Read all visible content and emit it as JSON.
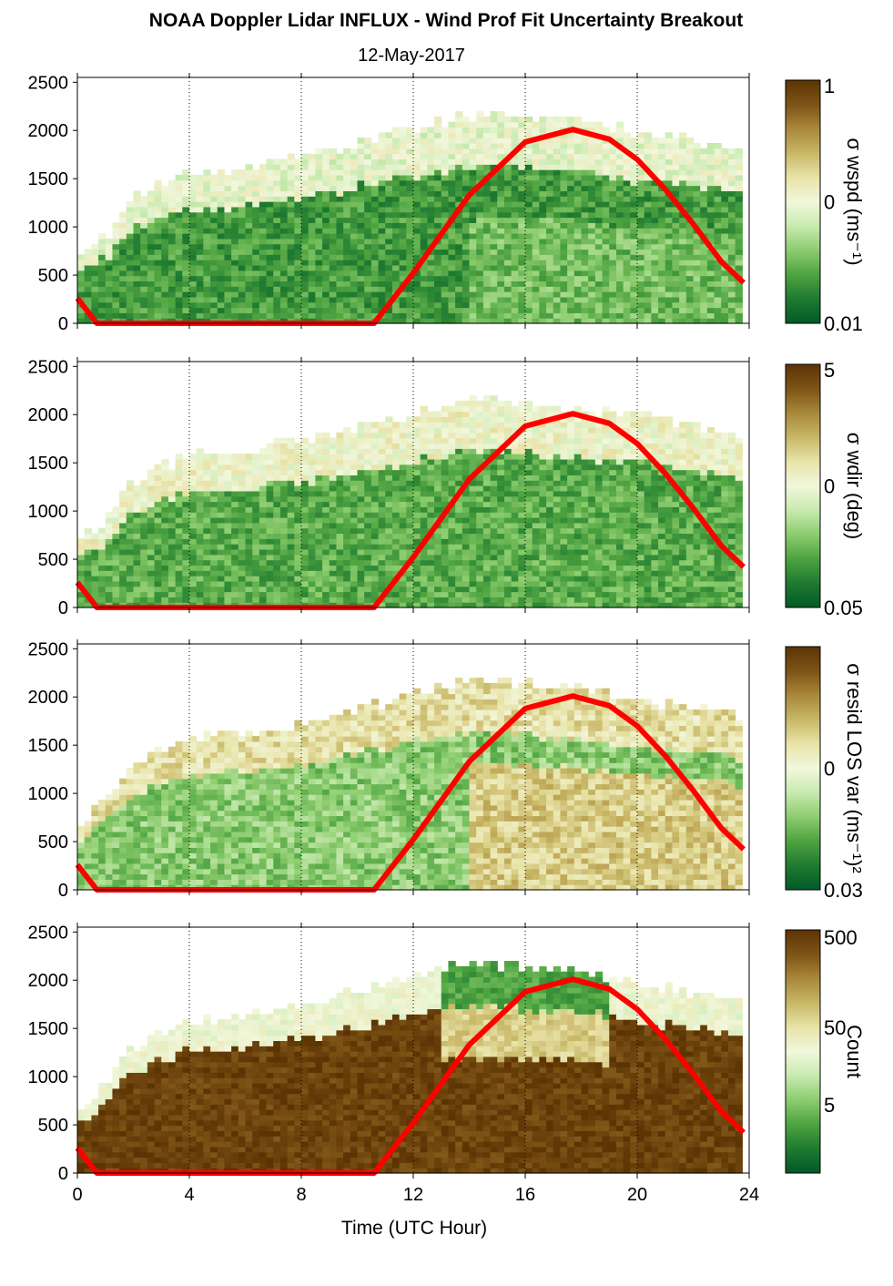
{
  "figure": {
    "title": "NOAA Doppler Lidar INFLUX - Wind Prof Fit Uncertainty Breakout",
    "subtitle": "12-May-2017",
    "xlabel": "Time (UTC Hour)"
  },
  "colors": {
    "solar_curve": "#ff0000",
    "colormap": [
      "#005a28",
      "#1f7a30",
      "#4ea341",
      "#8ccc6e",
      "#c8eab0",
      "#f2f7dc",
      "#e8e3a8",
      "#c8b766",
      "#a8883a",
      "#7d5316",
      "#5c3404"
    ]
  },
  "chart_data": [
    {
      "type": "heatmap",
      "name": "panel-wspd",
      "xlim": [
        0,
        24
      ],
      "ylim": [
        0,
        2550
      ],
      "xticks": [
        0,
        4,
        8,
        12,
        16,
        20,
        24
      ],
      "yticks": [
        0,
        500,
        1000,
        1500,
        2000,
        2500
      ],
      "vertical_gridlines": [
        4,
        8,
        12,
        16,
        20
      ],
      "grid": "dotted vertical",
      "colorbar": {
        "label": "σ wspd (ms⁻¹)",
        "scale": "log",
        "ticks": [
          "1",
          "0",
          "0.01"
        ]
      },
      "approx_data_top_m": [
        [
          0,
          660
        ],
        [
          1,
          880
        ],
        [
          2,
          1300
        ],
        [
          4,
          1550
        ],
        [
          6,
          1600
        ],
        [
          8,
          1700
        ],
        [
          10,
          1850
        ],
        [
          12,
          2000
        ],
        [
          14,
          2150
        ],
        [
          16,
          2100
        ],
        [
          18,
          2050
        ],
        [
          20,
          1950
        ],
        [
          22,
          1850
        ],
        [
          24,
          1750
        ]
      ],
      "approx_mean_level_0_to_1": 0.18
    },
    {
      "type": "heatmap",
      "name": "panel-wdir",
      "xlim": [
        0,
        24
      ],
      "ylim": [
        0,
        2550
      ],
      "xticks": [
        0,
        4,
        8,
        12,
        16,
        20,
        24
      ],
      "yticks": [
        0,
        500,
        1000,
        1500,
        2000,
        2500
      ],
      "vertical_gridlines": [
        4,
        8,
        12,
        16,
        20
      ],
      "grid": "dotted vertical",
      "colorbar": {
        "label": "σ wdir (deg)",
        "scale": "log",
        "ticks": [
          "5",
          "0",
          "0.05"
        ]
      },
      "approx_data_top_m": [
        [
          0,
          660
        ],
        [
          1,
          880
        ],
        [
          2,
          1300
        ],
        [
          4,
          1550
        ],
        [
          6,
          1600
        ],
        [
          8,
          1700
        ],
        [
          10,
          1850
        ],
        [
          12,
          2000
        ],
        [
          14,
          2150
        ],
        [
          16,
          2100
        ],
        [
          18,
          2050
        ],
        [
          20,
          1950
        ],
        [
          22,
          1850
        ],
        [
          24,
          1750
        ]
      ],
      "approx_mean_level_0_to_1": 0.22
    },
    {
      "type": "heatmap",
      "name": "panel-resid",
      "xlim": [
        0,
        24
      ],
      "ylim": [
        0,
        2550
      ],
      "xticks": [
        0,
        4,
        8,
        12,
        16,
        20,
        24
      ],
      "yticks": [
        0,
        500,
        1000,
        1500,
        2000,
        2500
      ],
      "vertical_gridlines": [
        4,
        8,
        12,
        16,
        20
      ],
      "grid": "dotted vertical",
      "colorbar": {
        "label": "σ resid LOS var (ms⁻¹)²",
        "scale": "log",
        "ticks": [
          "0",
          "0.03"
        ]
      },
      "approx_data_top_m": [
        [
          0,
          660
        ],
        [
          1,
          880
        ],
        [
          2,
          1300
        ],
        [
          4,
          1550
        ],
        [
          6,
          1600
        ],
        [
          8,
          1700
        ],
        [
          10,
          1850
        ],
        [
          12,
          2000
        ],
        [
          14,
          2150
        ],
        [
          16,
          2100
        ],
        [
          18,
          2050
        ],
        [
          20,
          1950
        ],
        [
          22,
          1850
        ],
        [
          24,
          1750
        ]
      ],
      "approx_mean_level_0_to_1": 0.3
    },
    {
      "type": "heatmap",
      "name": "panel-count",
      "xlim": [
        0,
        24
      ],
      "ylim": [
        0,
        2550
      ],
      "xticks": [
        0,
        4,
        8,
        12,
        16,
        20,
        24
      ],
      "yticks": [
        0,
        500,
        1000,
        1500,
        2000,
        2500
      ],
      "vertical_gridlines": [
        4,
        8,
        12,
        16,
        20
      ],
      "grid": "dotted vertical",
      "colorbar": {
        "label": "Count",
        "scale": "log",
        "ticks": [
          "500",
          "50",
          "5"
        ]
      },
      "approx_data_top_m": [
        [
          0,
          660
        ],
        [
          1,
          880
        ],
        [
          2,
          1300
        ],
        [
          4,
          1550
        ],
        [
          6,
          1600
        ],
        [
          8,
          1700
        ],
        [
          10,
          1850
        ],
        [
          12,
          2000
        ],
        [
          14,
          2150
        ],
        [
          16,
          2100
        ],
        [
          18,
          2050
        ],
        [
          20,
          1950
        ],
        [
          22,
          1850
        ],
        [
          24,
          1750
        ]
      ],
      "approx_mean_level_0_to_1": 0.9
    }
  ],
  "solar_curve": {
    "description_level": "overlay line",
    "points": [
      [
        0,
        260
      ],
      [
        0.7,
        0
      ],
      [
        10.6,
        0
      ],
      [
        12,
        520
      ],
      [
        14,
        1330
      ],
      [
        16,
        1880
      ],
      [
        17.7,
        2010
      ],
      [
        19,
        1910
      ],
      [
        20,
        1700
      ],
      [
        21,
        1390
      ],
      [
        22,
        1030
      ],
      [
        23,
        640
      ],
      [
        23.8,
        420
      ]
    ]
  }
}
